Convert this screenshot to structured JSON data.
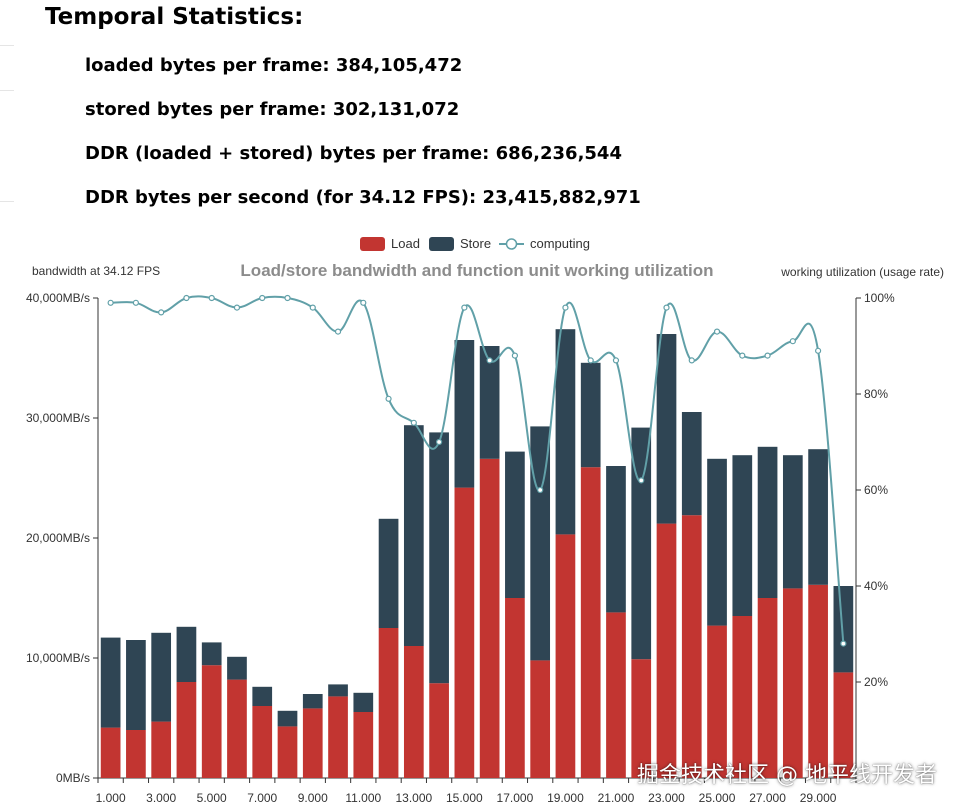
{
  "stats": {
    "title": "Temporal Statistics:",
    "lines": [
      "loaded bytes per frame: 384,105,472",
      "stored bytes per frame: 302,131,072",
      "DDR (loaded + stored) bytes per frame: 686,236,544",
      "DDR bytes per second (for 34.12 FPS): 23,415,882,971"
    ]
  },
  "watermark": "掘金技术社区 @ 地平线开发者",
  "chart_data": {
    "type": "bar",
    "title": "Load/store bandwidth and function unit working utilization",
    "ylabel_left": "bandwidth at 34.12 FPS",
    "ylabel_right": "working utilization (usage rate)",
    "legend": [
      "Load",
      "Store",
      "computing"
    ],
    "legend_position": "top-center",
    "x": [
      1,
      2,
      3,
      4,
      5,
      6,
      7,
      8,
      9,
      10,
      11,
      12,
      13,
      14,
      15,
      16,
      17,
      18,
      19,
      20,
      21,
      22,
      23,
      24,
      25,
      26,
      27,
      28,
      29,
      30
    ],
    "x_tick_labels": [
      "1.000",
      "3.000",
      "5.000",
      "7.000",
      "9.000",
      "11.000",
      "13.000",
      "15.000",
      "17.000",
      "19.000",
      "21.000",
      "23.000",
      "25.000",
      "27.000",
      "29.000"
    ],
    "ylim_left": [
      0,
      40000
    ],
    "y_tick_labels_left": [
      "0MB/s",
      "10,000MB/s",
      "20,000MB/s",
      "30,000MB/s",
      "40,000MB/s"
    ],
    "ylim_right": [
      0,
      100
    ],
    "y_tick_labels_right": [
      "20%",
      "40%",
      "60%",
      "80%",
      "100%"
    ],
    "stacked": true,
    "series": [
      {
        "name": "Load",
        "type": "bar",
        "color": "#c23531",
        "values": [
          4200,
          4000,
          4700,
          8000,
          9400,
          8200,
          6000,
          4300,
          5800,
          6800,
          5500,
          12500,
          11000,
          7900,
          24200,
          26600,
          15000,
          9800,
          20300,
          25900,
          13800,
          9900,
          21200,
          21900,
          12700,
          13500,
          15000,
          15800,
          16100,
          8800
        ]
      },
      {
        "name": "Store",
        "type": "bar",
        "color": "#2f4554",
        "values": [
          7500,
          7500,
          7400,
          4600,
          1900,
          1900,
          1600,
          1300,
          1200,
          1000,
          1600,
          9100,
          18400,
          20900,
          12300,
          9400,
          12200,
          19500,
          17100,
          8700,
          12200,
          19300,
          15800,
          8600,
          13900,
          13400,
          12600,
          11100,
          11300,
          7200
        ]
      },
      {
        "name": "computing",
        "type": "line",
        "color": "#61a0a8",
        "values": [
          99,
          99,
          97,
          100,
          100,
          98,
          100,
          100,
          98,
          93,
          99,
          79,
          74,
          70,
          98,
          87,
          88,
          60,
          98,
          87,
          87,
          62,
          98,
          87,
          93,
          88,
          88,
          91,
          89,
          28
        ]
      }
    ]
  }
}
